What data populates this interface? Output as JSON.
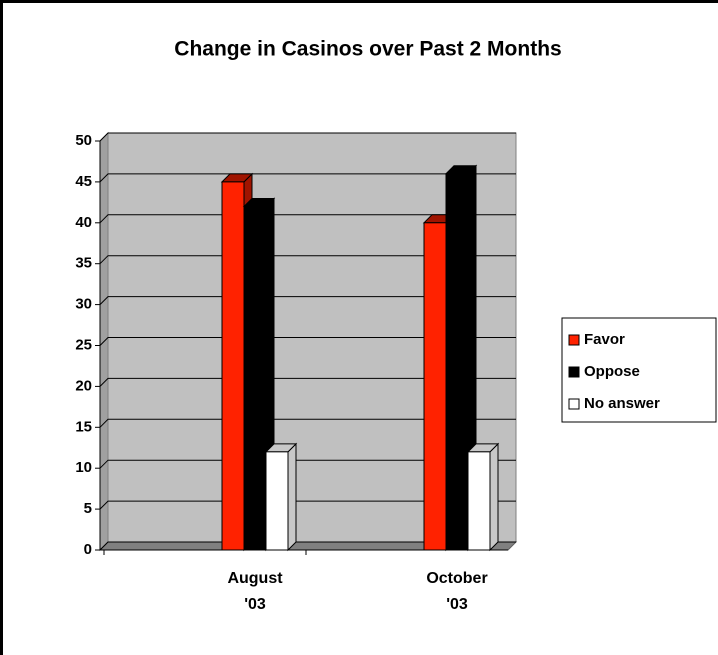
{
  "chart_data": {
    "type": "bar",
    "title": "Change in Casinos over Past 2 Months",
    "categories": [
      "August '03",
      "October '03"
    ],
    "series": [
      {
        "name": "Favor",
        "color": "#ff2200",
        "values": [
          45,
          40
        ]
      },
      {
        "name": "Oppose",
        "color": "#000000",
        "values": [
          42,
          46
        ]
      },
      {
        "name": "No answer",
        "color": "#ffffff",
        "values": [
          12,
          12
        ]
      }
    ],
    "ylim": [
      0,
      50
    ],
    "yticks": [
      0,
      5,
      10,
      15,
      20,
      25,
      30,
      35,
      40,
      45,
      50
    ],
    "grid": true,
    "legend": "right"
  }
}
